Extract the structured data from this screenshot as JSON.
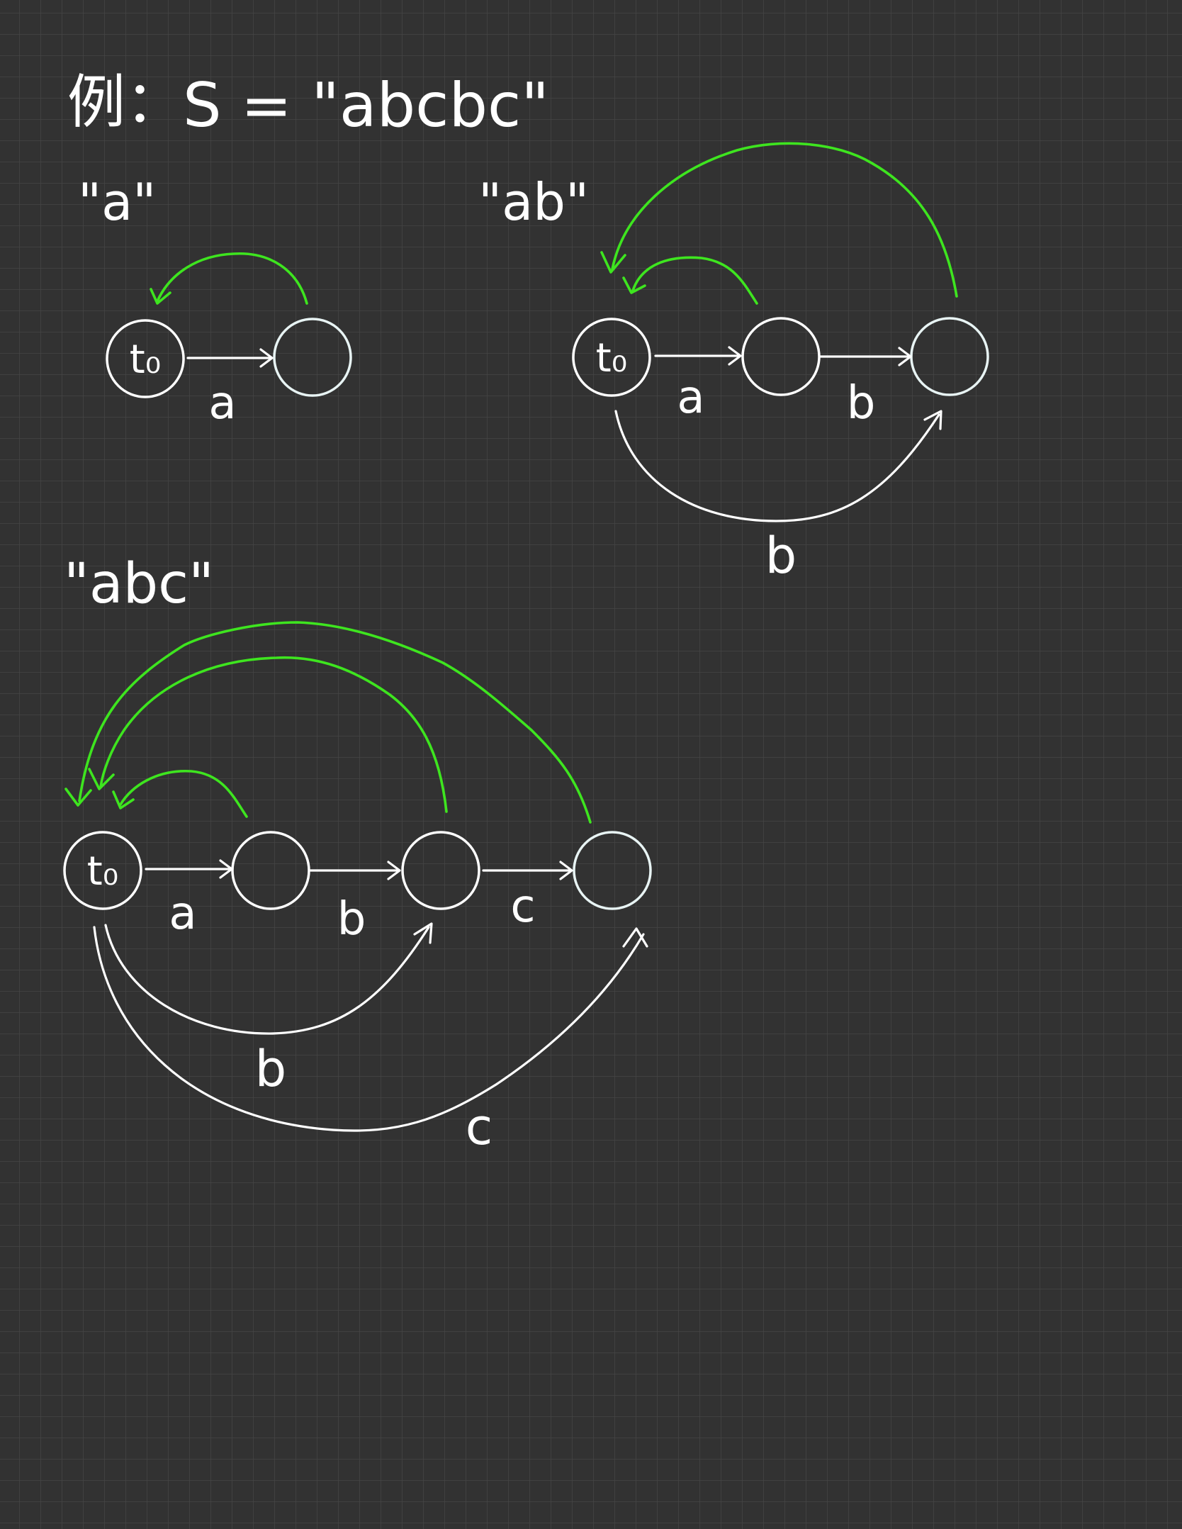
{
  "example": {
    "prefix": "例：",
    "string_label": "S = \"abcbc\""
  },
  "diagrams": [
    {
      "label": "\"a\"",
      "start_node_label": "t₀",
      "edge_labels": [
        "a"
      ]
    },
    {
      "label": "\"ab\"",
      "start_node_label": "t₀",
      "edge_labels": [
        "a",
        "b",
        "b"
      ]
    },
    {
      "label": "\"abc\"",
      "start_node_label": "t₀",
      "edge_labels": [
        "a",
        "b",
        "c",
        "b",
        "c"
      ]
    }
  ],
  "colors": {
    "background": "#323232",
    "grid": "#454545",
    "ink": "#ffffff",
    "suffix_link": "#3ee51f",
    "accepting_fill": "#287574"
  }
}
